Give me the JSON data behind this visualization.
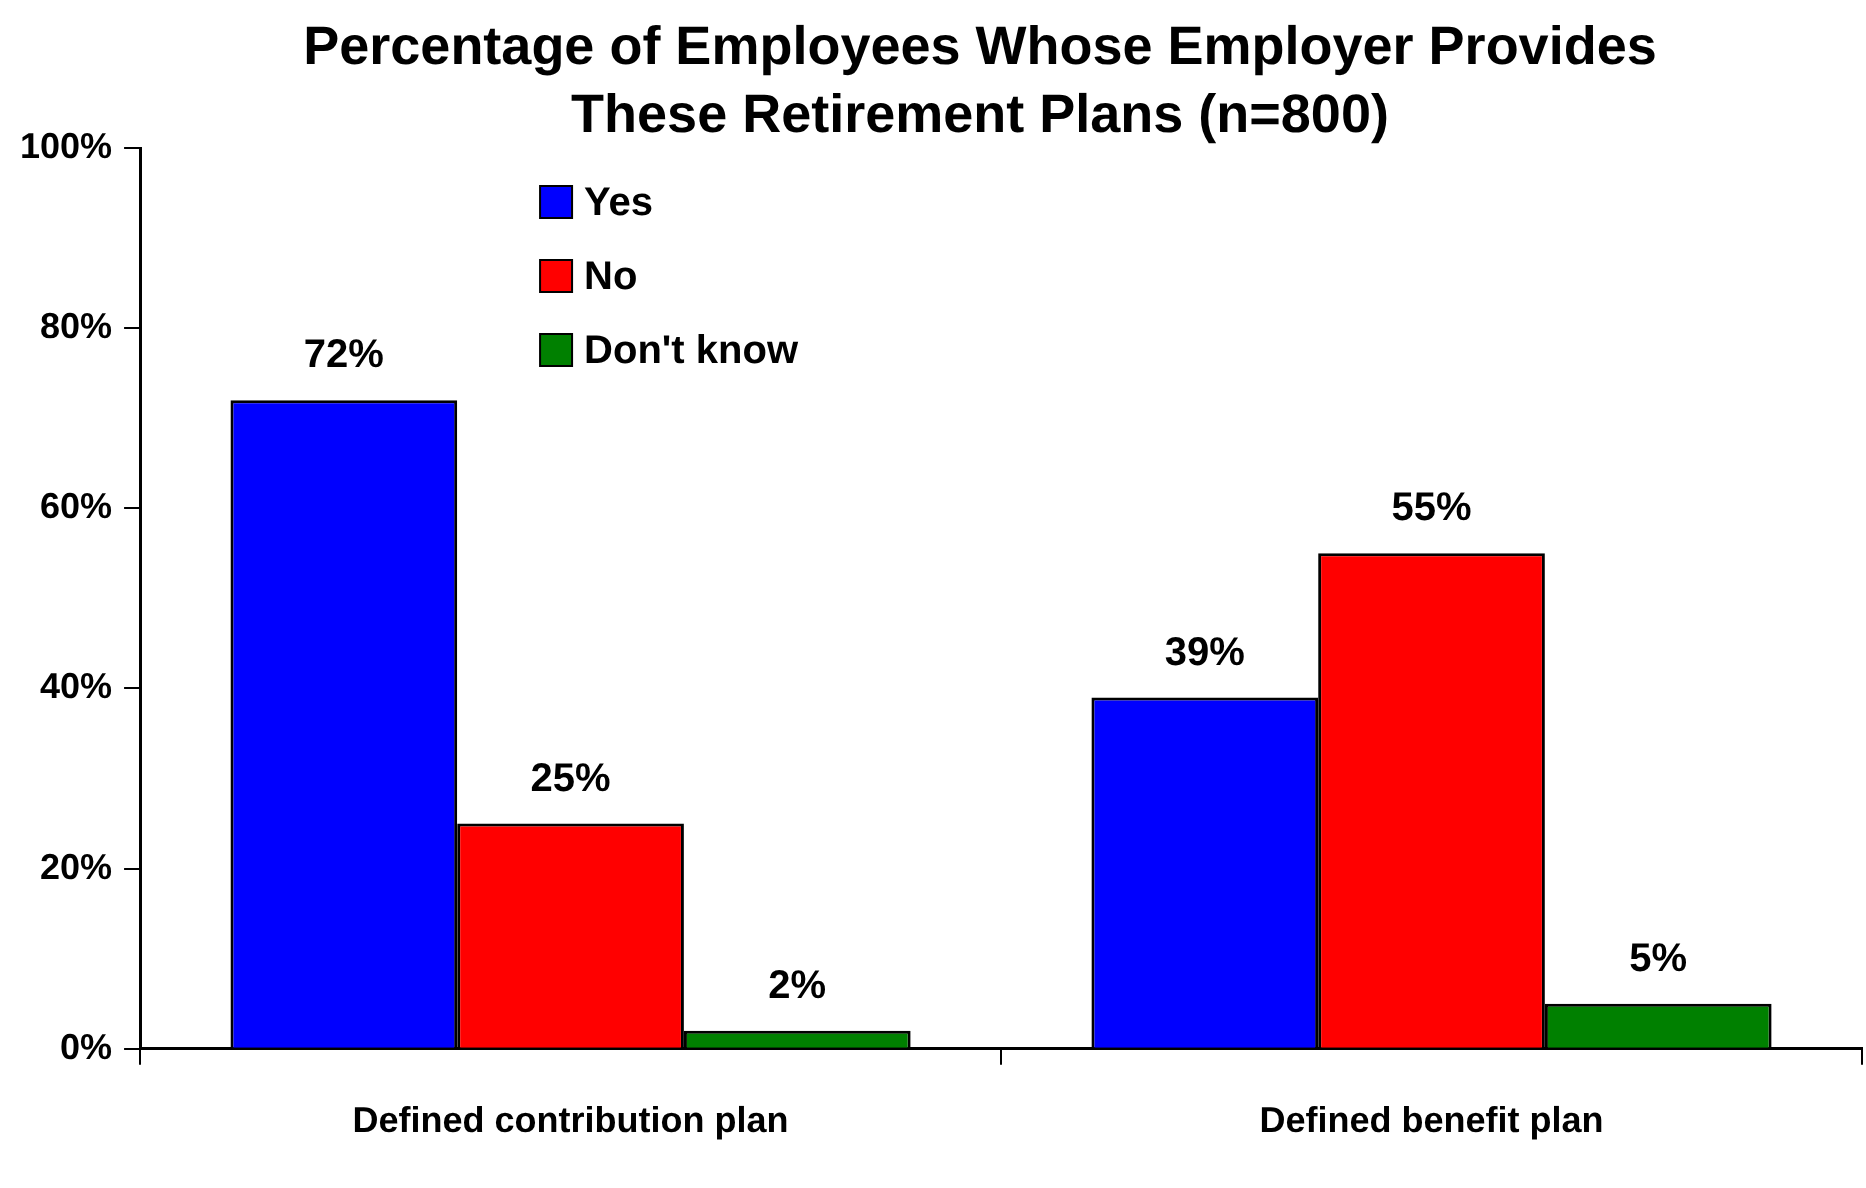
{
  "chart_data": {
    "type": "bar",
    "title": "Percentage of Employees Whose Employer Provides These Retirement Plans (n=800)",
    "categories": [
      "Defined contribution plan",
      "Defined benefit plan"
    ],
    "series": [
      {
        "name": "Yes",
        "color": "#0000ff",
        "values": [
          72,
          39
        ],
        "value_labels": [
          "72%",
          "39%"
        ]
      },
      {
        "name": "No",
        "color": "#ff0000",
        "values": [
          25,
          55
        ],
        "value_labels": [
          "25%",
          "55%"
        ]
      },
      {
        "name": "Don't know",
        "color": "#008000",
        "values": [
          2,
          5
        ],
        "value_labels": [
          "2%",
          "5%"
        ]
      }
    ],
    "ylim": [
      0,
      100
    ],
    "yticks": [
      {
        "value": 0,
        "label": "0%"
      },
      {
        "value": 20,
        "label": "20%"
      },
      {
        "value": 40,
        "label": "40%"
      },
      {
        "value": 60,
        "label": "60%"
      },
      {
        "value": 80,
        "label": "80%"
      },
      {
        "value": 100,
        "label": "100%"
      }
    ],
    "grid": false,
    "legend": "top"
  }
}
